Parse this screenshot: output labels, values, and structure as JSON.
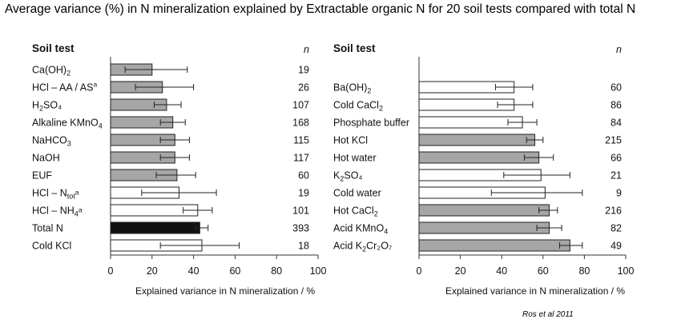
{
  "title": "Average variance (%) in N mineralization explained by Extractable organic N for 20 soil tests compared with total N",
  "citation": "Ros et al 2011",
  "colors": {
    "gray": "#a6a6a6",
    "white": "#ffffff",
    "black": "#111111",
    "stroke": "#222222"
  },
  "chart_data": [
    {
      "type": "bar",
      "orientation": "horizontal",
      "header_label": "Soil test",
      "header_n": "n",
      "xlabel": "Explained variance in N mineralization / %",
      "xlim": [
        0,
        100
      ],
      "xticks": [
        "0",
        "20",
        "40",
        "60",
        "80",
        "100"
      ],
      "rows": [
        {
          "label": "Ca(OH)",
          "sub": "2",
          "sup": "",
          "tail": "",
          "n": "19",
          "value": 20,
          "err_low": 7,
          "err_high": 37,
          "fill": "gray"
        },
        {
          "label": "HCl – AA / AS",
          "sub": "",
          "sup": "a",
          "tail": "",
          "n": "26",
          "value": 25,
          "err_low": 12,
          "err_high": 40,
          "fill": "gray"
        },
        {
          "label": "H",
          "sub": "2",
          "sup": "",
          "tail": "SO₄",
          "n": "107",
          "value": 27,
          "err_low": 21,
          "err_high": 34,
          "fill": "gray"
        },
        {
          "label": "Alkaline KMnO",
          "sub": "4",
          "sup": "",
          "tail": "",
          "n": "168",
          "value": 30,
          "err_low": 24,
          "err_high": 36,
          "fill": "gray"
        },
        {
          "label": "NaHCO",
          "sub": "3",
          "sup": "",
          "tail": "",
          "n": "115",
          "value": 31,
          "err_low": 24,
          "err_high": 38,
          "fill": "gray"
        },
        {
          "label": "NaOH",
          "sub": "",
          "sup": "",
          "tail": "",
          "n": "117",
          "value": 31,
          "err_low": 24,
          "err_high": 38,
          "fill": "gray"
        },
        {
          "label": "EUF",
          "sub": "",
          "sup": "",
          "tail": "",
          "n": "60",
          "value": 32,
          "err_low": 22,
          "err_high": 41,
          "fill": "gray"
        },
        {
          "label": "HCl – N",
          "sub": "tot",
          "sup": "a",
          "tail": "",
          "n": "19",
          "value": 33,
          "err_low": 15,
          "err_high": 51,
          "fill": "white"
        },
        {
          "label": "HCl – NH",
          "sub": "4",
          "sup": "a",
          "tail": "",
          "n": "101",
          "value": 42,
          "err_low": 35,
          "err_high": 49,
          "fill": "white"
        },
        {
          "label": "Total N",
          "sub": "",
          "sup": "",
          "tail": "",
          "n": "393",
          "value": 43,
          "err_low": 41,
          "err_high": 47,
          "fill": "black"
        },
        {
          "label": "Cold KCl",
          "sub": "",
          "sup": "",
          "tail": "",
          "n": "18",
          "value": 44,
          "err_low": 24,
          "err_high": 62,
          "fill": "white"
        }
      ]
    },
    {
      "type": "bar",
      "orientation": "horizontal",
      "header_label": "Soil test",
      "header_n": "n",
      "xlabel": "Explained variance in N mineralization / %",
      "xlim": [
        0,
        100
      ],
      "xticks": [
        "0",
        "20",
        "40",
        "60",
        "80",
        "100"
      ],
      "rows": [
        {
          "label": "Ba(OH)",
          "sub": "2",
          "sup": "",
          "tail": "",
          "n": "60",
          "value": 46,
          "err_low": 37,
          "err_high": 55,
          "fill": "white"
        },
        {
          "label": "Cold CaCl",
          "sub": "2",
          "sup": "",
          "tail": "",
          "n": "86",
          "value": 46,
          "err_low": 38,
          "err_high": 55,
          "fill": "white"
        },
        {
          "label": "Phosphate buffer",
          "sub": "",
          "sup": "",
          "tail": "",
          "n": "84",
          "value": 50,
          "err_low": 43,
          "err_high": 57,
          "fill": "white"
        },
        {
          "label": "Hot KCl",
          "sub": "",
          "sup": "",
          "tail": "",
          "n": "215",
          "value": 56,
          "err_low": 52,
          "err_high": 60,
          "fill": "gray"
        },
        {
          "label": "Hot water",
          "sub": "",
          "sup": "",
          "tail": "",
          "n": "66",
          "value": 58,
          "err_low": 51,
          "err_high": 65,
          "fill": "gray"
        },
        {
          "label": "K",
          "sub": "2",
          "sup": "",
          "tail": "SO₄",
          "n": "21",
          "value": 59,
          "err_low": 41,
          "err_high": 73,
          "fill": "white"
        },
        {
          "label": "Cold water",
          "sub": "",
          "sup": "",
          "tail": "",
          "n": "9",
          "value": 61,
          "err_low": 35,
          "err_high": 79,
          "fill": "white"
        },
        {
          "label": "Hot CaCl",
          "sub": "2",
          "sup": "",
          "tail": "",
          "n": "216",
          "value": 63,
          "err_low": 58,
          "err_high": 67,
          "fill": "gray"
        },
        {
          "label": "Acid KMnO",
          "sub": "4",
          "sup": "",
          "tail": "",
          "n": "82",
          "value": 63,
          "err_low": 57,
          "err_high": 69,
          "fill": "gray"
        },
        {
          "label": "Acid K",
          "sub": "2",
          "sup": "",
          "tail": "Cr₂O₇",
          "n": "49",
          "value": 73,
          "err_low": 68,
          "err_high": 79,
          "fill": "gray"
        }
      ]
    }
  ]
}
